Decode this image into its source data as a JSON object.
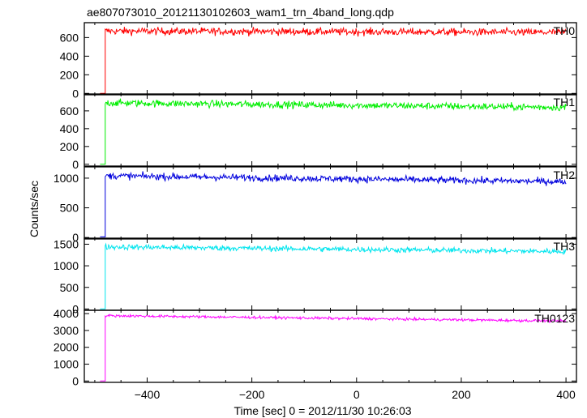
{
  "chart_data": {
    "type": "line",
    "title": "ae807073010_20121130102603_wam1_trn_4band_long.qdp",
    "xlabel": "Time [sec] 0 = 2012/11/30 10:26:03",
    "ylabel": "Counts/sec",
    "xlim": [
      -520,
      420
    ],
    "x_ticks": [
      -400,
      -200,
      0,
      200,
      400
    ],
    "x_tick_labels": [
      "−400",
      "−200",
      "0",
      "200",
      "400"
    ],
    "x_start": -490,
    "x_step_on": -480,
    "x_end": 400,
    "panels": [
      {
        "name": "TH0",
        "color": "#ff0000",
        "ylim": [
          -15,
          760
        ],
        "y_ticks": [
          0,
          200,
          400,
          600
        ],
        "y_tick_labels": [
          "0",
          "200",
          "400",
          "600"
        ],
        "pre_level": 0,
        "level_start": 670,
        "level_end": 655,
        "noise": 28
      },
      {
        "name": "TH1",
        "color": "#00ee00",
        "ylim": [
          -20,
          790
        ],
        "y_ticks": [
          0,
          200,
          400,
          600
        ],
        "y_tick_labels": [
          "0",
          "200",
          "400",
          "600"
        ],
        "pre_level": 0,
        "level_start": 690,
        "level_end": 640,
        "noise": 28
      },
      {
        "name": "TH2",
        "color": "#0000dd",
        "ylim": [
          -25,
          1190
        ],
        "y_ticks": [
          0,
          500,
          1000
        ],
        "y_tick_labels": [
          "0",
          "500",
          "1000"
        ],
        "pre_level": 10,
        "level_start": 1040,
        "level_end": 940,
        "noise": 40
      },
      {
        "name": "TH3",
        "color": "#00e5ee",
        "ylim": [
          -30,
          1640
        ],
        "y_ticks": [
          0,
          500,
          1000,
          1500
        ],
        "y_tick_labels": [
          "0",
          "500",
          "1000",
          "1500"
        ],
        "pre_level": 0,
        "level_start": 1440,
        "level_end": 1330,
        "noise": 45
      },
      {
        "name": "TH0123",
        "color": "#ff00ff",
        "ylim": [
          -80,
          4200
        ],
        "y_ticks": [
          0,
          1000,
          2000,
          3000,
          4000
        ],
        "y_tick_labels": [
          "0",
          "1000",
          "2000",
          "3000",
          "4000"
        ],
        "pre_level": 0,
        "level_start": 3880,
        "level_end": 3560,
        "noise": 55
      }
    ]
  }
}
